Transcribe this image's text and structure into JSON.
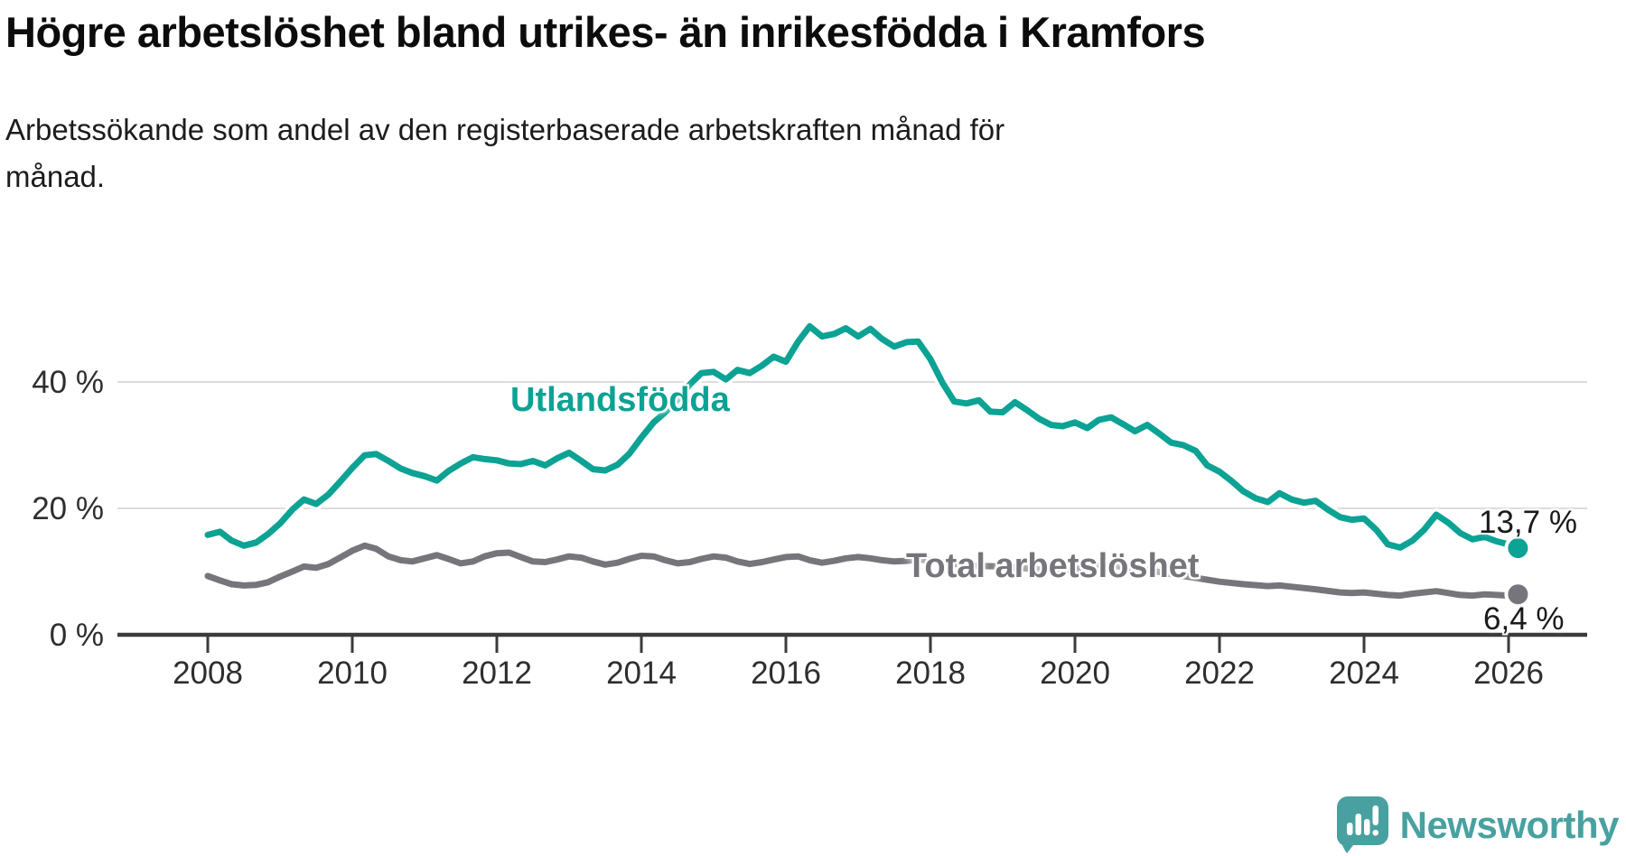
{
  "header": {
    "title": "Högre arbetslöshet bland utrikes- än inrikesfödda i Kramfors",
    "subtitle_line1": "Arbetssökande som andel av den registerbaserade arbetskraften månad för",
    "subtitle_line2": "månad."
  },
  "footer": {
    "brand": "Newsworthy",
    "brand_color": "#48a1a0",
    "logo_icon": "speech-bubble-bar-chart"
  },
  "chart_data": {
    "type": "line",
    "title": "Högre arbetslöshet bland utrikes- än inrikesfödda i Kramfors",
    "subtitle": "Arbetssökande som andel av den registerbaserade arbetskraften månad för månad.",
    "grid": "horizontal",
    "legend_position": "inline-labels",
    "x_axis": {
      "range": [
        2007.05,
        2027.1
      ],
      "ticks": [
        2008,
        2010,
        2012,
        2014,
        2016,
        2018,
        2020,
        2022,
        2024,
        2026
      ],
      "tick_labels": [
        "2008",
        "2010",
        "2012",
        "2014",
        "2016",
        "2018",
        "2020",
        "2022",
        "2024",
        "2026"
      ]
    },
    "y_axis": {
      "unit": "%",
      "range": [
        0,
        52
      ],
      "ticks": [
        {
          "value": 0,
          "label": "0 %"
        },
        {
          "value": 20,
          "label": "20 %"
        },
        {
          "value": 40,
          "label": "40 %"
        }
      ]
    },
    "series": [
      {
        "name": "Utlandsfödda",
        "label_text": "Utlandsfödda",
        "color": "#0ca294",
        "end_label": "13,7 %",
        "end_value": 13.7,
        "data": [
          [
            2008.0,
            15.8
          ],
          [
            2008.17,
            16.3
          ],
          [
            2008.33,
            14.9
          ],
          [
            2008.5,
            14.1
          ],
          [
            2008.67,
            14.6
          ],
          [
            2008.83,
            15.9
          ],
          [
            2009.0,
            17.6
          ],
          [
            2009.17,
            19.8
          ],
          [
            2009.33,
            21.4
          ],
          [
            2009.5,
            20.7
          ],
          [
            2009.67,
            22.2
          ],
          [
            2009.83,
            24.2
          ],
          [
            2010.0,
            26.4
          ],
          [
            2010.17,
            28.4
          ],
          [
            2010.33,
            28.6
          ],
          [
            2010.5,
            27.5
          ],
          [
            2010.67,
            26.3
          ],
          [
            2010.83,
            25.6
          ],
          [
            2011.0,
            25.1
          ],
          [
            2011.17,
            24.4
          ],
          [
            2011.33,
            25.9
          ],
          [
            2011.5,
            27.1
          ],
          [
            2011.67,
            28.1
          ],
          [
            2011.83,
            27.8
          ],
          [
            2012.0,
            27.6
          ],
          [
            2012.17,
            27.1
          ],
          [
            2012.33,
            27.0
          ],
          [
            2012.5,
            27.5
          ],
          [
            2012.67,
            26.8
          ],
          [
            2012.83,
            27.9
          ],
          [
            2013.0,
            28.8
          ],
          [
            2013.17,
            27.5
          ],
          [
            2013.33,
            26.2
          ],
          [
            2013.5,
            26.0
          ],
          [
            2013.67,
            26.9
          ],
          [
            2013.83,
            28.6
          ],
          [
            2014.0,
            31.2
          ],
          [
            2014.17,
            33.6
          ],
          [
            2014.33,
            35.2
          ],
          [
            2014.5,
            37.2
          ],
          [
            2014.67,
            39.6
          ],
          [
            2014.83,
            41.4
          ],
          [
            2015.0,
            41.6
          ],
          [
            2015.17,
            40.4
          ],
          [
            2015.33,
            41.9
          ],
          [
            2015.5,
            41.4
          ],
          [
            2015.67,
            42.6
          ],
          [
            2015.83,
            44.0
          ],
          [
            2016.0,
            43.2
          ],
          [
            2016.17,
            46.4
          ],
          [
            2016.33,
            48.8
          ],
          [
            2016.5,
            47.2
          ],
          [
            2016.67,
            47.6
          ],
          [
            2016.83,
            48.5
          ],
          [
            2017.0,
            47.2
          ],
          [
            2017.17,
            48.4
          ],
          [
            2017.33,
            46.8
          ],
          [
            2017.5,
            45.6
          ],
          [
            2017.67,
            46.3
          ],
          [
            2017.83,
            46.4
          ],
          [
            2018.0,
            43.6
          ],
          [
            2018.17,
            39.8
          ],
          [
            2018.33,
            36.9
          ],
          [
            2018.5,
            36.6
          ],
          [
            2018.67,
            37.1
          ],
          [
            2018.83,
            35.3
          ],
          [
            2019.0,
            35.2
          ],
          [
            2019.17,
            36.8
          ],
          [
            2019.33,
            35.6
          ],
          [
            2019.5,
            34.2
          ],
          [
            2019.67,
            33.2
          ],
          [
            2019.83,
            33.0
          ],
          [
            2020.0,
            33.6
          ],
          [
            2020.17,
            32.7
          ],
          [
            2020.33,
            34.0
          ],
          [
            2020.5,
            34.4
          ],
          [
            2020.67,
            33.3
          ],
          [
            2020.83,
            32.2
          ],
          [
            2021.0,
            33.2
          ],
          [
            2021.17,
            31.8
          ],
          [
            2021.33,
            30.4
          ],
          [
            2021.5,
            30.0
          ],
          [
            2021.67,
            29.1
          ],
          [
            2021.83,
            26.8
          ],
          [
            2022.0,
            25.8
          ],
          [
            2022.17,
            24.3
          ],
          [
            2022.33,
            22.7
          ],
          [
            2022.5,
            21.6
          ],
          [
            2022.67,
            21.0
          ],
          [
            2022.83,
            22.4
          ],
          [
            2023.0,
            21.4
          ],
          [
            2023.17,
            20.9
          ],
          [
            2023.33,
            21.2
          ],
          [
            2023.5,
            19.8
          ],
          [
            2023.67,
            18.6
          ],
          [
            2023.83,
            18.2
          ],
          [
            2024.0,
            18.4
          ],
          [
            2024.17,
            16.6
          ],
          [
            2024.33,
            14.3
          ],
          [
            2024.5,
            13.8
          ],
          [
            2024.67,
            14.9
          ],
          [
            2024.83,
            16.6
          ],
          [
            2025.0,
            19.0
          ],
          [
            2025.17,
            17.7
          ],
          [
            2025.33,
            16.1
          ],
          [
            2025.5,
            15.1
          ],
          [
            2025.67,
            15.5
          ],
          [
            2025.83,
            14.8
          ],
          [
            2026.0,
            14.3
          ],
          [
            2026.13,
            13.7
          ]
        ]
      },
      {
        "name": "Total arbetslöshet",
        "label_text": "Total arbetslöshet",
        "color": "#76757b",
        "end_label": "6,4 %",
        "end_value": 6.4,
        "data": [
          [
            2008.0,
            9.3
          ],
          [
            2008.17,
            8.6
          ],
          [
            2008.33,
            8.0
          ],
          [
            2008.5,
            7.8
          ],
          [
            2008.67,
            7.9
          ],
          [
            2008.83,
            8.3
          ],
          [
            2009.0,
            9.2
          ],
          [
            2009.17,
            10.0
          ],
          [
            2009.33,
            10.8
          ],
          [
            2009.5,
            10.6
          ],
          [
            2009.67,
            11.2
          ],
          [
            2009.83,
            12.2
          ],
          [
            2010.0,
            13.3
          ],
          [
            2010.17,
            14.1
          ],
          [
            2010.33,
            13.6
          ],
          [
            2010.5,
            12.4
          ],
          [
            2010.67,
            11.8
          ],
          [
            2010.83,
            11.6
          ],
          [
            2011.0,
            12.1
          ],
          [
            2011.17,
            12.6
          ],
          [
            2011.33,
            12.0
          ],
          [
            2011.5,
            11.3
          ],
          [
            2011.67,
            11.6
          ],
          [
            2011.83,
            12.4
          ],
          [
            2012.0,
            12.9
          ],
          [
            2012.17,
            13.0
          ],
          [
            2012.33,
            12.3
          ],
          [
            2012.5,
            11.6
          ],
          [
            2012.67,
            11.5
          ],
          [
            2012.83,
            11.9
          ],
          [
            2013.0,
            12.4
          ],
          [
            2013.17,
            12.2
          ],
          [
            2013.33,
            11.6
          ],
          [
            2013.5,
            11.1
          ],
          [
            2013.67,
            11.4
          ],
          [
            2013.83,
            12.0
          ],
          [
            2014.0,
            12.5
          ],
          [
            2014.17,
            12.4
          ],
          [
            2014.33,
            11.8
          ],
          [
            2014.5,
            11.3
          ],
          [
            2014.67,
            11.5
          ],
          [
            2014.83,
            12.0
          ],
          [
            2015.0,
            12.4
          ],
          [
            2015.17,
            12.2
          ],
          [
            2015.33,
            11.6
          ],
          [
            2015.5,
            11.2
          ],
          [
            2015.67,
            11.5
          ],
          [
            2015.83,
            11.9
          ],
          [
            2016.0,
            12.3
          ],
          [
            2016.17,
            12.4
          ],
          [
            2016.33,
            11.8
          ],
          [
            2016.5,
            11.4
          ],
          [
            2016.67,
            11.7
          ],
          [
            2016.83,
            12.1
          ],
          [
            2017.0,
            12.3
          ],
          [
            2017.17,
            12.1
          ],
          [
            2017.33,
            11.8
          ],
          [
            2017.5,
            11.6
          ],
          [
            2017.67,
            11.7
          ],
          [
            2017.83,
            11.9
          ],
          [
            2018.0,
            11.8
          ],
          [
            2018.33,
            11.2
          ],
          [
            2018.67,
            10.9
          ],
          [
            2019.0,
            10.8
          ],
          [
            2019.33,
            10.5
          ],
          [
            2019.67,
            10.2
          ],
          [
            2020.0,
            10.4
          ],
          [
            2020.33,
            10.9
          ],
          [
            2020.5,
            11.0
          ],
          [
            2020.83,
            10.4
          ],
          [
            2021.0,
            10.3
          ],
          [
            2021.33,
            9.6
          ],
          [
            2021.67,
            9.0
          ],
          [
            2022.0,
            8.4
          ],
          [
            2022.33,
            8.0
          ],
          [
            2022.67,
            7.7
          ],
          [
            2022.83,
            7.8
          ],
          [
            2023.0,
            7.6
          ],
          [
            2023.33,
            7.2
          ],
          [
            2023.67,
            6.7
          ],
          [
            2023.83,
            6.6
          ],
          [
            2024.0,
            6.7
          ],
          [
            2024.33,
            6.3
          ],
          [
            2024.5,
            6.2
          ],
          [
            2024.67,
            6.5
          ],
          [
            2025.0,
            6.9
          ],
          [
            2025.17,
            6.6
          ],
          [
            2025.33,
            6.3
          ],
          [
            2025.5,
            6.2
          ],
          [
            2025.67,
            6.4
          ],
          [
            2025.83,
            6.3
          ],
          [
            2026.0,
            6.2
          ],
          [
            2026.13,
            6.4
          ]
        ]
      }
    ],
    "colors": {
      "grid": "#dcdcdc",
      "axis": "#3b3b3b",
      "text": "#2e2e2e"
    }
  }
}
